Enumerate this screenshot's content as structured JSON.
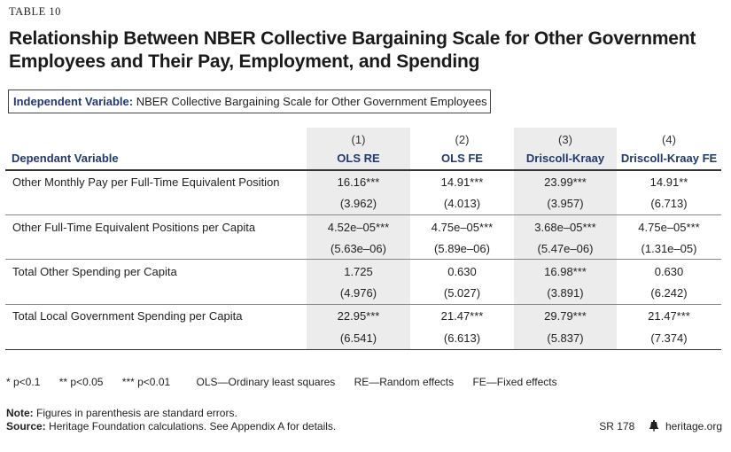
{
  "table_label": "TABLE 10",
  "title": "Relationship Between NBER Collective Bargaining Scale for Other Government Employees and Their Pay, Employment, and Spending",
  "independent_variable": {
    "label": "Independent Variable:",
    "value": "NBER Collective Bargaining Scale for Other Government Employees"
  },
  "dependent_header": "Dependant Variable",
  "columns": [
    {
      "num": "(1)",
      "name": "OLS RE",
      "shaded": true
    },
    {
      "num": "(2)",
      "name": "OLS FE",
      "shaded": false
    },
    {
      "num": "(3)",
      "name": "Driscoll-Kraay",
      "shaded": true
    },
    {
      "num": "(4)",
      "name": "Driscoll-Kraay FE",
      "shaded": false
    }
  ],
  "rows": [
    {
      "label": "Other Monthly Pay per Full-Time Equivalent Position",
      "coef": [
        "16.16***",
        "14.91***",
        "23.99***",
        "14.91**"
      ],
      "se": [
        "(3.962)",
        "(4.013)",
        "(3.957)",
        "(6.713)"
      ]
    },
    {
      "label": "Other Full-Time Equivalent Positions per Capita",
      "coef": [
        "4.52e–05***",
        "4.75e–05***",
        "3.68e–05***",
        "4.75e–05***"
      ],
      "se": [
        "(5.63e–06)",
        "(5.89e–06)",
        "(5.47e–06)",
        "(1.31e–05)"
      ]
    },
    {
      "label": "Total Other Spending per Capita",
      "coef": [
        "1.725",
        "0.630",
        "16.98***",
        "0.630"
      ],
      "se": [
        "(4.976)",
        "(5.027)",
        "(3.891)",
        "(6.242)"
      ]
    },
    {
      "label": "Total Local Government Spending per Capita",
      "coef": [
        "22.95***",
        "21.47***",
        "29.79***",
        "21.47***"
      ],
      "se": [
        "(6.541)",
        "(6.613)",
        "(5.837)",
        "(7.374)"
      ]
    }
  ],
  "legend": [
    "* p<0.1",
    "** p<0.05",
    "*** p<0.01",
    "OLS—Ordinary least squares",
    "RE—Random effects",
    "FE—Fixed effects"
  ],
  "note": {
    "label": "Note:",
    "text": "Figures in parenthesis are standard errors."
  },
  "source": {
    "label": "Source:",
    "text": "Heritage Foundation calculations. See Appendix A for details."
  },
  "report_id": "SR 178",
  "site": "heritage.org",
  "colors": {
    "accent": "#1f3a73",
    "shade": "#ececec"
  }
}
